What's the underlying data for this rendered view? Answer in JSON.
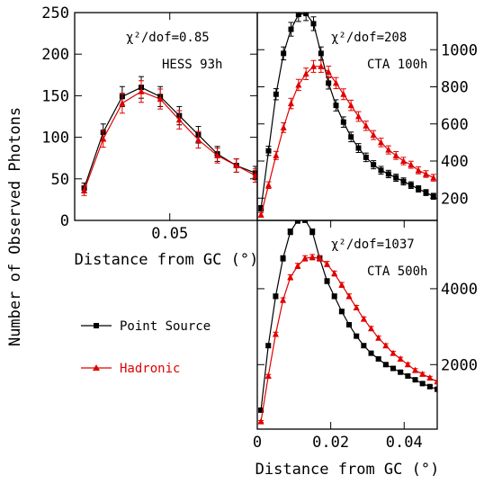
{
  "chart_data": [
    {
      "type": "line",
      "xlabel": "Distance from GC (°)",
      "ylabel": "Number of Observed Photons",
      "xlim": [
        0,
        0.096
      ],
      "ylim": [
        0,
        250
      ],
      "x_ticks": [
        0.05
      ],
      "x_tick_labels": [
        "0.05"
      ],
      "y_ticks": [
        0,
        50,
        100,
        150,
        200,
        250
      ],
      "y_tick_labels": [
        "0",
        "50",
        "100",
        "150",
        "200",
        "250"
      ],
      "y_axis_side": "left",
      "annotations": [
        "χ²/dof=0.85",
        "HESS 93h"
      ],
      "x": [
        0.005,
        0.015,
        0.025,
        0.035,
        0.045,
        0.055,
        0.065,
        0.075,
        0.085,
        0.095
      ],
      "series": [
        {
          "name": "Point Source",
          "color": "#000000",
          "marker": "square",
          "values": [
            39,
            106,
            149,
            160,
            149,
            126,
            103,
            80,
            66,
            57
          ],
          "errors": [
            6,
            10,
            12,
            13,
            12,
            11,
            10,
            9,
            8,
            8
          ]
        },
        {
          "name": "Hadronic",
          "color": "#e00000",
          "marker": "triangle",
          "values": [
            36,
            98,
            141,
            155,
            146,
            121,
            97,
            78,
            66,
            54
          ],
          "errors": [
            6,
            10,
            12,
            13,
            12,
            11,
            10,
            9,
            8,
            8
          ]
        }
      ]
    },
    {
      "type": "line",
      "xlim": [
        0,
        0.048
      ],
      "ylim": [
        80,
        1200
      ],
      "y_ticks": [
        200,
        400,
        600,
        800,
        1000
      ],
      "y_tick_labels": [
        "200",
        "400",
        "600",
        "800",
        "1000"
      ],
      "y_axis_side": "right",
      "annotations": [
        "χ²/dof=208",
        "CTA 100h"
      ],
      "x": [
        0.001,
        0.003,
        0.005,
        0.007,
        0.009,
        0.011,
        0.013,
        0.015,
        0.017,
        0.019,
        0.021,
        0.023,
        0.025,
        0.027,
        0.029,
        0.031,
        0.033,
        0.035,
        0.037,
        0.039,
        0.041,
        0.043,
        0.045,
        0.047
      ],
      "series": [
        {
          "name": "Point Source",
          "color": "#000000",
          "marker": "square",
          "values": [
            145,
            455,
            760,
            980,
            1110,
            1190,
            1195,
            1140,
            980,
            820,
            700,
            610,
            530,
            470,
            420,
            380,
            350,
            330,
            310,
            290,
            270,
            250,
            230,
            210
          ],
          "errors": [
            15,
            25,
            30,
            35,
            37,
            38,
            38,
            37,
            35,
            32,
            30,
            28,
            26,
            24,
            23,
            22,
            21,
            20,
            19,
            19,
            18,
            17,
            16,
            16
          ]
        },
        {
          "name": "Hadronic",
          "color": "#e00000",
          "marker": "triangle",
          "values": [
            110,
            270,
            430,
            580,
            710,
            810,
            870,
            910,
            910,
            880,
            820,
            760,
            700,
            640,
            590,
            540,
            500,
            460,
            430,
            400,
            380,
            350,
            330,
            310
          ],
          "errors": [
            12,
            18,
            22,
            26,
            28,
            30,
            31,
            32,
            32,
            31,
            30,
            29,
            28,
            26,
            25,
            24,
            23,
            22,
            21,
            20,
            19,
            19,
            18,
            18
          ]
        }
      ]
    },
    {
      "type": "line",
      "xlabel": "Distance from GC (°)",
      "xlim": [
        0,
        0.049
      ],
      "ylim": [
        300,
        5800
      ],
      "x_ticks": [
        0,
        0.02,
        0.04
      ],
      "x_tick_labels": [
        "0",
        "0.02",
        "0.04"
      ],
      "y_ticks": [
        2000,
        4000
      ],
      "y_tick_labels": [
        "2000",
        "4000"
      ],
      "y_axis_side": "right",
      "annotations": [
        "χ²/dof=1037",
        "CTA 500h"
      ],
      "x": [
        0.001,
        0.003,
        0.005,
        0.007,
        0.009,
        0.011,
        0.013,
        0.015,
        0.017,
        0.019,
        0.021,
        0.023,
        0.025,
        0.027,
        0.029,
        0.031,
        0.033,
        0.035,
        0.037,
        0.039,
        0.041,
        0.043,
        0.045,
        0.047,
        0.049
      ],
      "series": [
        {
          "name": "Point Source",
          "color": "#000000",
          "marker": "square",
          "values": [
            800,
            2500,
            3800,
            4800,
            5500,
            5800,
            5820,
            5500,
            4800,
            4200,
            3800,
            3400,
            3050,
            2750,
            2500,
            2300,
            2150,
            2000,
            1900,
            1800,
            1700,
            1600,
            1500,
            1420,
            1350
          ],
          "errors": [
            30,
            50,
            60,
            70,
            74,
            76,
            76,
            74,
            70,
            65,
            62,
            58,
            55,
            52,
            50,
            48,
            46,
            45,
            44,
            42,
            41,
            40,
            39,
            38,
            37
          ]
        },
        {
          "name": "Hadronic",
          "color": "#e00000",
          "marker": "triangle",
          "values": [
            500,
            1700,
            2800,
            3700,
            4300,
            4600,
            4800,
            4830,
            4800,
            4650,
            4400,
            4100,
            3800,
            3500,
            3200,
            2950,
            2700,
            2500,
            2300,
            2150,
            2000,
            1850,
            1750,
            1650,
            1550
          ],
          "errors": [
            25,
            40,
            53,
            60,
            66,
            68,
            70,
            70,
            70,
            68,
            66,
            64,
            62,
            59,
            56,
            54,
            52,
            50,
            48,
            46,
            45,
            43,
            42,
            41,
            40
          ]
        }
      ]
    }
  ],
  "legend": {
    "items": [
      {
        "label": "Point Source",
        "color": "#000000",
        "marker": "square"
      },
      {
        "label": "Hadronic",
        "color": "#e00000",
        "marker": "triangle"
      }
    ]
  }
}
